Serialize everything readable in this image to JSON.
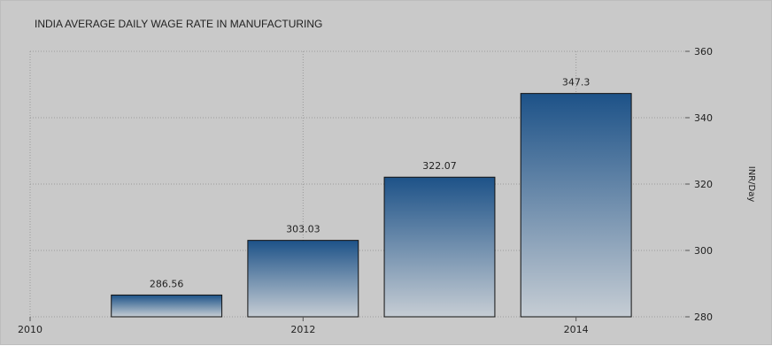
{
  "chart_data": {
    "type": "bar",
    "title": "INDIA AVERAGE DAILY WAGE RATE IN MANUFACTURING",
    "xlabel": "",
    "ylabel": "INR/Day",
    "x": [
      2011,
      2012,
      2013,
      2014
    ],
    "values": [
      286.56,
      303.03,
      322.07,
      347.3
    ],
    "value_labels": [
      "286.56",
      "303.03",
      "322.07",
      "347.3"
    ],
    "xlim": [
      2010,
      2014.8
    ],
    "ylim": [
      280,
      360
    ],
    "x_ticks": [
      2010,
      2012,
      2014
    ],
    "y_ticks": [
      280,
      300,
      320,
      340,
      360
    ],
    "y_axis_side": "right",
    "grid": true,
    "bar_color_top": "#1d5288",
    "bar_color_bottom": "#c6cdd4"
  }
}
